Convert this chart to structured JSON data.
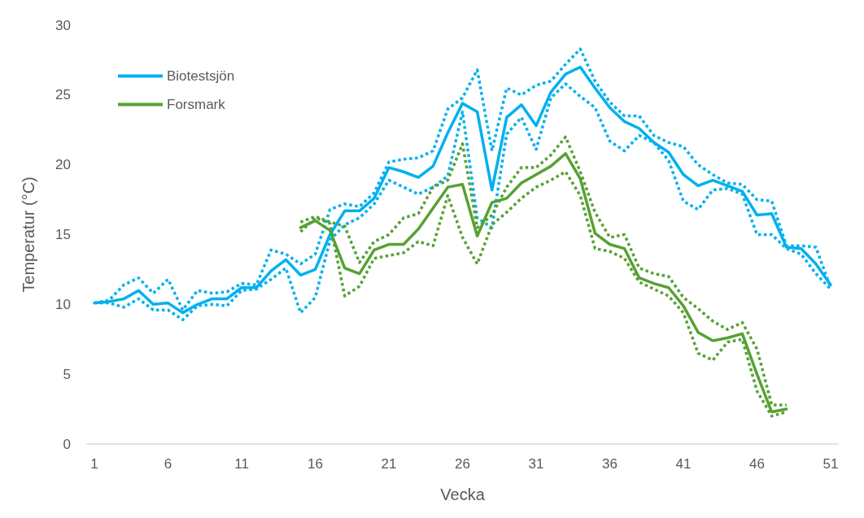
{
  "chart_data": {
    "type": "line",
    "xlabel": "Vecka",
    "ylabel": "Temperatur (°C)",
    "x": [
      1,
      2,
      3,
      4,
      5,
      6,
      7,
      8,
      9,
      10,
      11,
      12,
      13,
      14,
      15,
      16,
      17,
      18,
      19,
      20,
      21,
      22,
      23,
      24,
      25,
      26,
      27,
      28,
      29,
      30,
      31,
      32,
      33,
      34,
      35,
      36,
      37,
      38,
      39,
      40,
      41,
      42,
      43,
      44,
      45,
      46,
      47,
      48,
      49,
      50,
      51
    ],
    "xlim": [
      0.5,
      51.5
    ],
    "xticks": [
      1,
      6,
      11,
      16,
      21,
      26,
      31,
      36,
      41,
      46,
      51
    ],
    "ylim": [
      0,
      30
    ],
    "yticks": [
      0,
      5,
      10,
      15,
      20,
      25,
      30
    ],
    "grid": false,
    "legend": "top left",
    "marker": "none",
    "series": [
      {
        "name": "Biotestsjön",
        "color": "#00b0f0",
        "line_style": "solid",
        "values": [
          10.1,
          10.2,
          10.4,
          11.0,
          10.0,
          10.1,
          9.4,
          10.0,
          10.4,
          10.4,
          11.2,
          11.2,
          12.4,
          13.2,
          12.1,
          12.5,
          15.0,
          16.7,
          16.7,
          17.6,
          19.8,
          19.5,
          19.1,
          19.9,
          22.3,
          24.4,
          23.8,
          18.2,
          23.4,
          24.3,
          22.8,
          25.2,
          26.5,
          27.0,
          25.5,
          24.1,
          23.1,
          22.6,
          21.6,
          20.9,
          19.3,
          18.5,
          18.9,
          18.5,
          18.1,
          16.4,
          16.5,
          14.1,
          14.0,
          12.9,
          11.4
        ]
      },
      {
        "name": "Forsmark",
        "color": "#56a133",
        "line_style": "solid",
        "values": [
          null,
          null,
          null,
          null,
          null,
          null,
          null,
          null,
          null,
          null,
          null,
          null,
          null,
          null,
          15.5,
          16.0,
          15.3,
          12.6,
          12.2,
          13.9,
          14.3,
          14.3,
          15.4,
          16.9,
          18.4,
          18.6,
          14.9,
          17.3,
          17.6,
          18.7,
          19.3,
          19.9,
          20.8,
          19.0,
          15.1,
          14.3,
          14.0,
          11.9,
          11.5,
          11.2,
          9.9,
          8.0,
          7.4,
          7.6,
          7.9,
          5.0,
          2.3,
          2.5,
          null,
          null,
          null
        ]
      },
      {
        "color": "#00b0f0",
        "line_style": "dotted",
        "values": [
          10.1,
          10.3,
          11.4,
          11.9,
          10.8,
          11.8,
          9.6,
          11.0,
          10.8,
          10.9,
          11.5,
          11.4,
          13.9,
          13.6,
          12.9,
          13.6,
          16.8,
          17.2,
          17.0,
          18.0,
          20.2,
          20.4,
          20.5,
          21.0,
          24.0,
          24.8,
          26.8,
          21.0,
          25.5,
          25.0,
          25.7,
          26.0,
          27.2,
          28.3,
          26.0,
          24.5,
          23.5,
          23.5,
          22.1,
          21.6,
          21.3,
          20.0,
          19.3,
          18.7,
          18.6,
          17.5,
          17.4,
          14.2,
          14.2,
          14.1,
          11.2
        ]
      },
      {
        "color": "#00b0f0",
        "line_style": "dotted",
        "values": [
          10.1,
          10.1,
          9.8,
          10.4,
          9.6,
          9.6,
          8.9,
          9.9,
          10.0,
          9.9,
          11.0,
          11.1,
          11.8,
          12.6,
          9.4,
          10.5,
          14.6,
          15.7,
          16.2,
          17.2,
          18.9,
          18.4,
          17.9,
          18.4,
          19.2,
          23.8,
          16.2,
          15.5,
          22.2,
          23.4,
          21.1,
          24.8,
          25.8,
          24.9,
          24.1,
          21.7,
          21.0,
          22.1,
          21.6,
          20.3,
          17.4,
          16.8,
          18.2,
          18.3,
          17.9,
          15.0,
          15.0,
          14.0,
          13.6,
          12.2,
          11.1
        ]
      },
      {
        "color": "#56a133",
        "line_style": "dotted",
        "values": [
          null,
          null,
          null,
          null,
          null,
          null,
          null,
          null,
          null,
          null,
          null,
          null,
          null,
          null,
          15.9,
          16.3,
          15.9,
          15.6,
          13.0,
          14.5,
          15.0,
          16.2,
          16.5,
          18.4,
          18.9,
          21.5,
          15.5,
          16.4,
          18.4,
          19.8,
          19.8,
          20.7,
          22.0,
          19.5,
          16.6,
          14.8,
          15.0,
          12.6,
          12.2,
          12.0,
          10.5,
          9.7,
          8.8,
          8.2,
          8.7,
          6.8,
          2.8,
          2.8,
          null,
          null,
          null
        ]
      },
      {
        "color": "#56a133",
        "line_style": "dotted",
        "values": [
          null,
          null,
          null,
          null,
          null,
          null,
          null,
          null,
          null,
          null,
          null,
          null,
          null,
          null,
          15.2,
          16.2,
          15.8,
          10.6,
          11.3,
          13.3,
          13.5,
          13.7,
          14.5,
          14.2,
          17.8,
          14.8,
          12.9,
          15.7,
          16.6,
          17.6,
          18.4,
          18.9,
          19.5,
          17.8,
          14.0,
          13.8,
          13.3,
          11.6,
          11.1,
          10.6,
          9.4,
          6.5,
          6.0,
          7.3,
          7.5,
          3.8,
          2.0,
          2.3,
          null,
          null,
          null
        ]
      }
    ]
  }
}
